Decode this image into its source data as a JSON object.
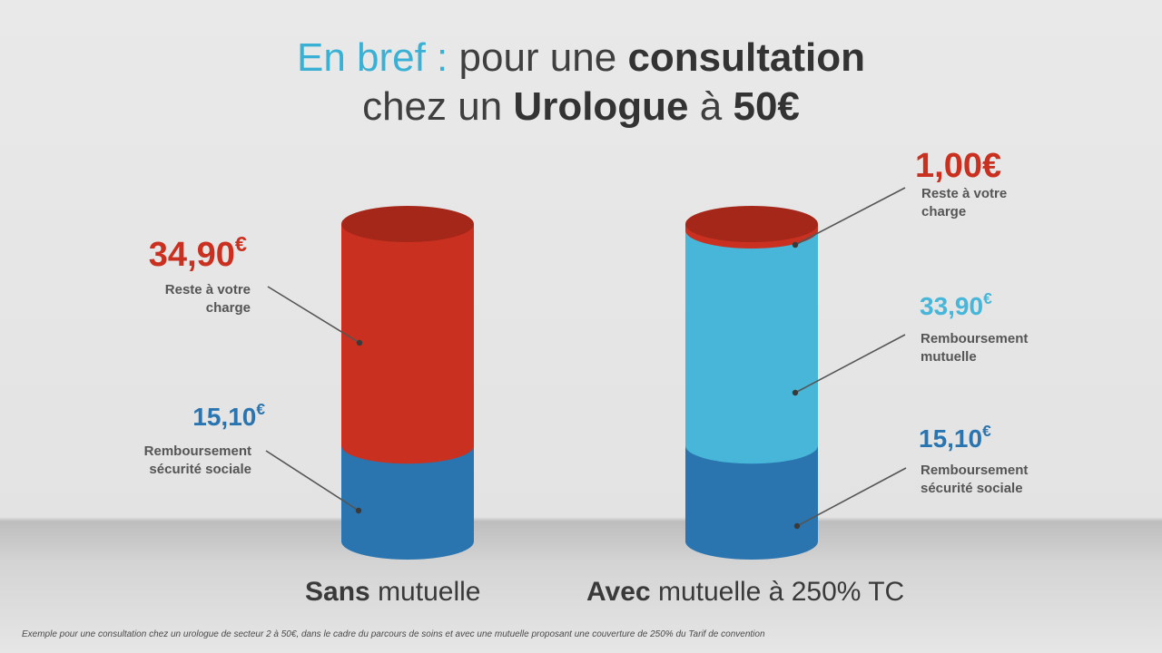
{
  "title": {
    "line1_accent": "En bref :",
    "line1_plain": "pour une",
    "line1_bold": "consultation",
    "line2_plain": "chez un",
    "line2_bold": "Urologue",
    "line2_plain2": "à",
    "line2_bold2": "50€"
  },
  "colors": {
    "reste": "#c9301f",
    "mutuelle": "#47b6d8",
    "secu": "#2a75b0",
    "accent": "#3ab1d4"
  },
  "chart_data": {
    "type": "bar",
    "stacked": true,
    "total": 50,
    "categories": [
      "Sans mutuelle",
      "Avec mutuelle à 250% TC"
    ],
    "series": [
      {
        "name": "Remboursement sécurité sociale",
        "values": [
          15.1,
          15.1
        ]
      },
      {
        "name": "Remboursement mutuelle",
        "values": [
          0,
          33.9
        ]
      },
      {
        "name": "Reste à votre charge",
        "values": [
          34.9,
          1.0
        ]
      }
    ]
  },
  "left": {
    "reste": {
      "value": "34,90",
      "unit": "€",
      "label1": "Reste à votre",
      "label2": "charge"
    },
    "secu": {
      "value": "15,10",
      "unit": "€",
      "label1": "Remboursement",
      "label2": "sécurité sociale"
    },
    "caption_bold": "Sans",
    "caption_plain": "mutuelle"
  },
  "right": {
    "reste": {
      "value": "1,00€",
      "label1": "Reste à votre",
      "label2": "charge"
    },
    "mutuelle": {
      "value": "33,90",
      "unit": "€",
      "label1": "Remboursement",
      "label2": "mutuelle"
    },
    "secu": {
      "value": "15,10",
      "unit": "€",
      "label1": "Remboursement",
      "label2": "sécurité sociale"
    },
    "caption_bold": "Avec",
    "caption_plain": "mutuelle à 250% TC"
  },
  "footnote": "Exemple pour une consultation chez un urologue de secteur 2 à 50€, dans le cadre du parcours de soins et avec une mutuelle proposant une couverture de 250% du Tarif de convention"
}
